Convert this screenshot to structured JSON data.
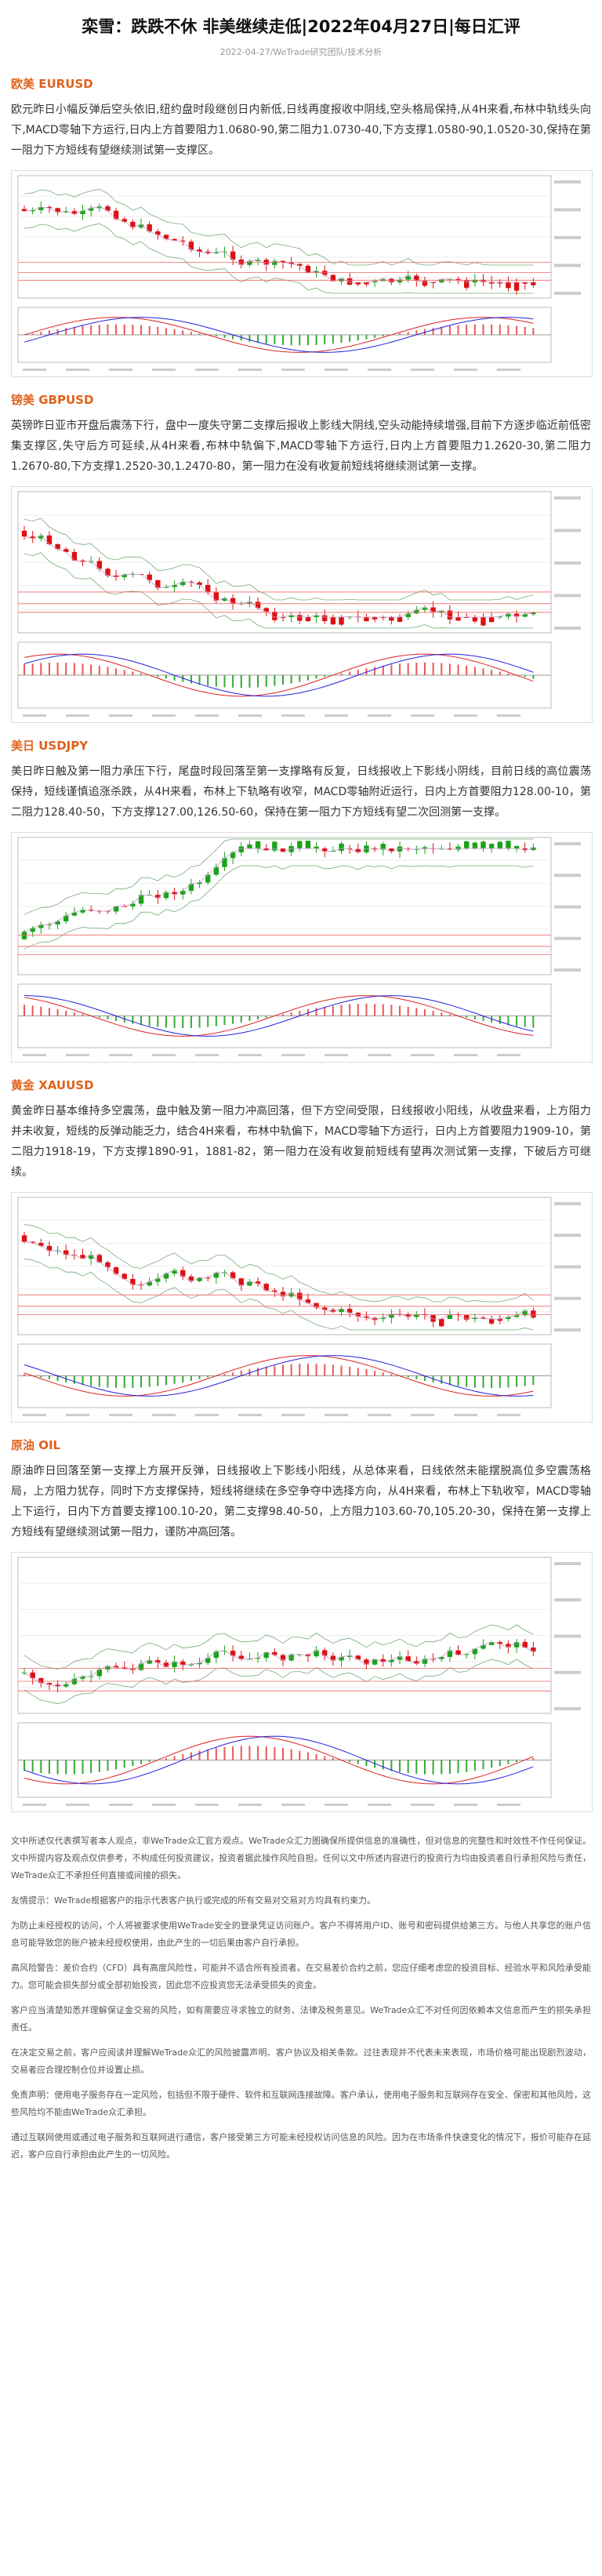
{
  "header": {
    "title": "栾雪：跌跌不休 非美继续走低|2022年04月27日|每日汇评",
    "meta": "2022-04-27/WeTrade研究团队/技术分析"
  },
  "sections": [
    {
      "heading": "欧美 EURUSD",
      "text": "欧元昨日小幅反弹后空头依旧,纽约盘时段继创日内新低,日线再度报收中阴线,空头格局保持,从4H来看,布林中轨线头向下,MACD零轴下方运行,日内上方首要阻力1.0680-90,第二阻力1.0730-40,下方支撑1.0580-90,1.0520-30,保持在第一阻力下方短线有望继续测试第一支撑区。"
    },
    {
      "heading": "镑美 GBPUSD",
      "text": "英镑昨日亚市开盘后震荡下行，盘中一度失守第二支撑后报收上影线大阴线,空头动能持续增强,目前下方逐步临近前低密集支撑区,失守后方可延续,从4H来看,布林中轨偏下,MACD零轴下方运行,日内上方首要阻力1.2620-30,第二阻力1.2670-80,下方支撑1.2520-30,1.2470-80，第一阻力在没有收复前短线将继续测试第一支撑。"
    },
    {
      "heading": "美日 USDJPY",
      "text": "美日昨日触及第一阻力承压下行，尾盘时段回落至第一支撑略有反复，日线报收上下影线小阴线，目前日线的高位震荡保持，短线谨慎追涨杀跌，从4H来看，布林上下轨略有收窄，MACD零轴附近运行，日内上方首要阻力128.00-10，第二阻力128.40-50，下方支撑127.00,126.50-60，保持在第一阻力下方短线有望二次回测第一支撑。"
    },
    {
      "heading": "黄金 XAUUSD",
      "text": "黄金昨日基本维持多空震荡，盘中触及第一阻力冲高回落，但下方空间受限，日线报收小阳线，从收盘来看，上方阻力并未收复，短线的反弹动能乏力，结合4H来看，布林中轨偏下，MACD零轴下方运行，日内上方首要阻力1909-10，第二阻力1918-19，下方支撑1890-91，1881-82，第一阻力在没有收复前短线有望再次测试第一支撑，下破后方可继续。"
    },
    {
      "heading": "原油 OIL",
      "text": "原油昨日回落至第一支撑上方展开反弹，日线报收上下影线小阳线，从总体来看，日线依然未能摆脱高位多空震荡格局，上方阻力犹存，同时下方支撑保持，短线将继续在多空争夺中选择方向，从4H来看，布林上下轨收窄，MACD零轴上下运行，日内下方首要支撑100.10-20，第二支撑98.40-50，上方阻力103.60-70,105.20-30，保持在第一支撑上方短线有望继续测试第一阻力，谨防冲高回落。"
    }
  ],
  "disclaimer": [
    "文中所述仅代表撰写者本人观点，非WeTrade众汇官方观点。WeTrade众汇力图确保所提供信息的准确性，但对信息的完整性和时效性不作任何保证。文中所提内容及观点仅供参考，不构成任何投资建议，投资者据此操作风险自担。任何以文中所述内容进行的投资行为均由投资者自行承担风险与责任，WeTrade众汇不承担任何直接或间接的损失。",
    "友情提示：WeTrade根据客户的指示代表客户执行或完成的所有交易对交易对方均具有约束力。",
    "为防止未经授权的访问，个人将被要求使用WeTrade安全的登录凭证访问账户。客户不得将用户ID、账号和密码提供给第三方。与他人共享您的账户信息可能导致您的账户被未经授权使用，由此产生的一切后果由客户自行承担。",
    "高风险警告：差价合约（CFD）具有高度风险性，可能并不适合所有投资者。在交易差价合约之前，您应仔细考虑您的投资目标、经验水平和风险承受能力。您可能会损失部分或全部初始投资，因此您不应投资您无法承受损失的资金。",
    "客户应当清楚知悉并理解保证金交易的风险，如有需要应寻求独立的财务、法律及税务意见。WeTrade众汇不对任何因依赖本文信息而产生的损失承担责任。",
    "在决定交易之前，客户应阅读并理解WeTrade众汇的风险披露声明、客户协议及相关条款。过往表现并不代表未来表现，市场价格可能出现剧烈波动，交易者应合理控制仓位并设置止损。",
    "免责声明：使用电子服务存在一定风险，包括但不限于硬件、软件和互联网连接故障。客户承认，使用电子服务和互联网存在安全、保密和其他风险，这些风险均不能由WeTrade众汇承担。",
    "通过互联网使用或通过电子服务和互联网进行通信，客户接受第三方可能未经授权访问信息的风险。因为在市场条件快速变化的情况下，报价可能存在延迟，客户应自行承担由此产生的一切风险。"
  ]
}
